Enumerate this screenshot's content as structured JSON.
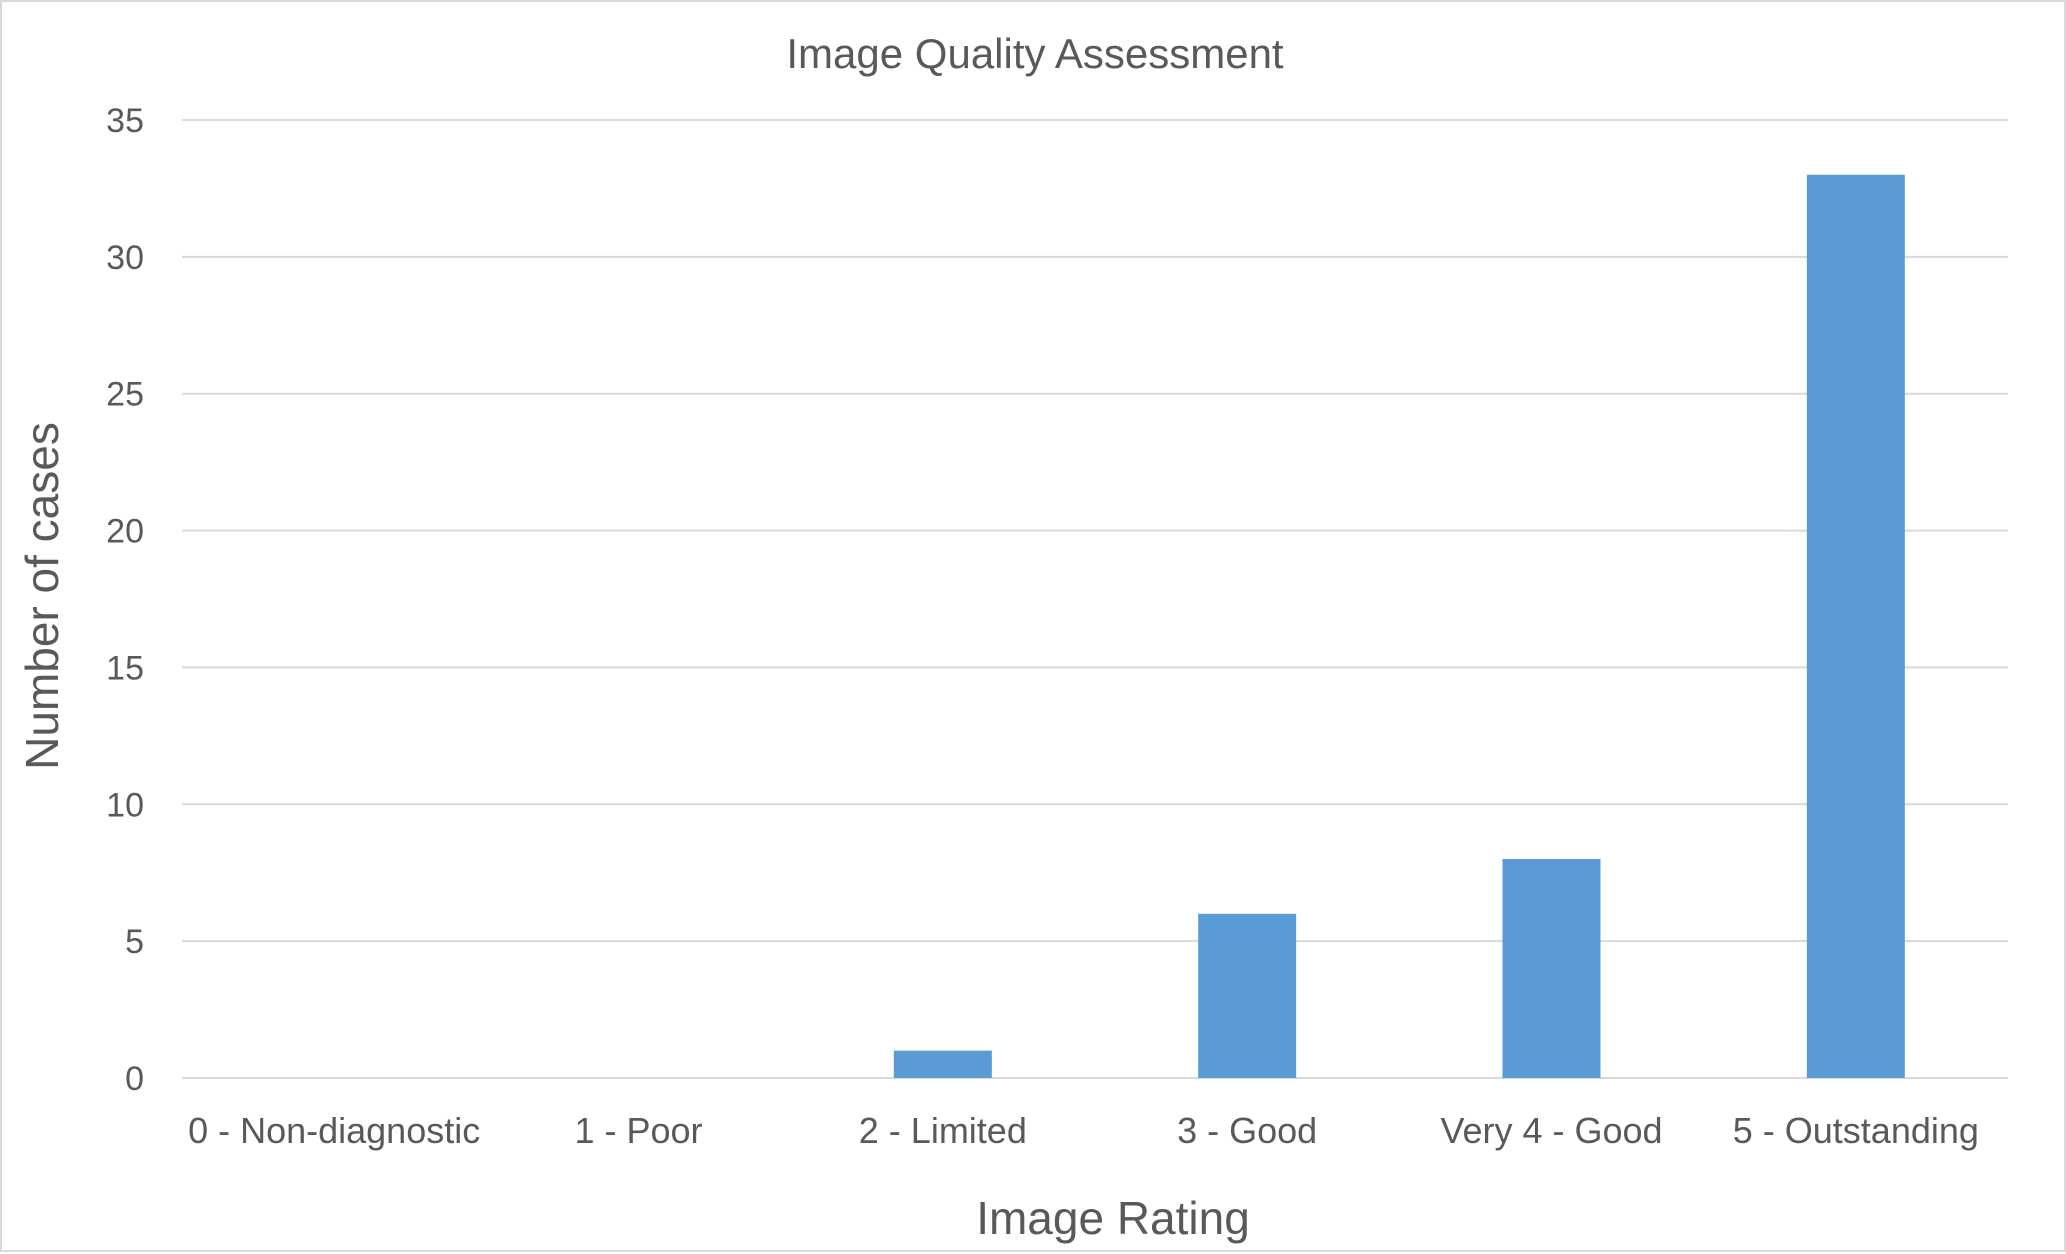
{
  "chart_data": {
    "type": "bar",
    "title": "Image Quality Assessment",
    "xlabel": "Image Rating",
    "ylabel": "Number of cases",
    "categories": [
      "0 - Non-diagnostic",
      "1 - Poor",
      "2 - Limited",
      "3 - Good",
      "Very 4 - Good",
      "5 - Outstanding"
    ],
    "values": [
      0,
      0,
      1,
      6,
      8,
      33
    ],
    "ylim": [
      0,
      35
    ],
    "yticks": [
      0,
      5,
      10,
      15,
      20,
      25,
      30,
      35
    ],
    "grid": true,
    "legend": "none",
    "bar_color": "#5b9bd5",
    "gridline_color": "#d9d9d9",
    "text_color": "#595959"
  }
}
